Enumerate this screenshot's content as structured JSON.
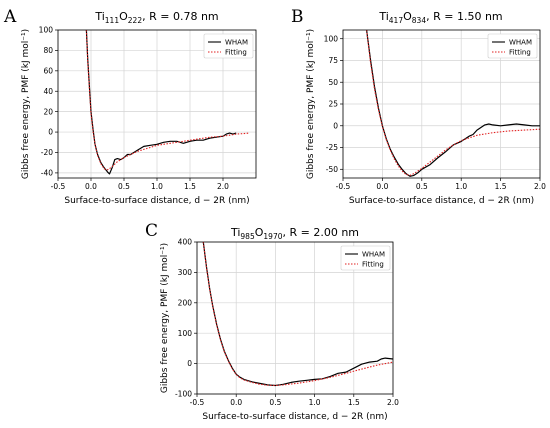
{
  "chart_data": [
    {
      "panel": "A",
      "type": "line",
      "title_main": "Ti",
      "title_sub1": "111",
      "title_mid": "O",
      "title_sub2": "222",
      "title_rest": ", R = 0.78 nm",
      "xlabel": "Surface-to-surface distance, d − 2R (nm)",
      "ylabel": "Gibbs free energy, PMF (kJ mol⁻¹)",
      "xlim": [
        -0.5,
        2.5
      ],
      "ylim": [
        -45,
        100
      ],
      "xticks": [
        -0.5,
        0.0,
        0.5,
        1.0,
        1.5,
        2.0
      ],
      "yticks": [
        -40,
        -20,
        0,
        20,
        40,
        60,
        80,
        100
      ],
      "grid": true,
      "legend": "top-right",
      "series": [
        {
          "name": "WHAM",
          "color": "#000000",
          "style": "solid",
          "x": [
            -0.07,
            -0.05,
            -0.02,
            0.0,
            0.03,
            0.06,
            0.1,
            0.15,
            0.2,
            0.25,
            0.28,
            0.32,
            0.36,
            0.4,
            0.45,
            0.5,
            0.55,
            0.6,
            0.7,
            0.8,
            0.9,
            1.0,
            1.1,
            1.2,
            1.3,
            1.4,
            1.5,
            1.6,
            1.7,
            1.8,
            1.9,
            2.0,
            2.05,
            2.1,
            2.15,
            2.2
          ],
          "y": [
            100,
            72,
            40,
            20,
            3,
            -12,
            -22,
            -30,
            -35,
            -39,
            -41,
            -35,
            -27,
            -26,
            -27,
            -25,
            -22,
            -22,
            -18,
            -14,
            -13,
            -12,
            -10,
            -9,
            -9,
            -11,
            -9,
            -8,
            -8,
            -6,
            -5,
            -4,
            -2,
            -1,
            -2,
            -1
          ]
        },
        {
          "name": "Fitting",
          "color": "#e02020",
          "style": "dotted",
          "x": [
            -0.07,
            -0.05,
            -0.02,
            0.0,
            0.03,
            0.06,
            0.1,
            0.15,
            0.2,
            0.25,
            0.3,
            0.35,
            0.4,
            0.5,
            0.6,
            0.7,
            0.8,
            0.9,
            1.0,
            1.2,
            1.4,
            1.6,
            1.8,
            2.0,
            2.2,
            2.4
          ],
          "y": [
            100,
            70,
            38,
            18,
            1,
            -12,
            -23,
            -31,
            -36,
            -37,
            -35,
            -32,
            -29,
            -25,
            -22,
            -19,
            -17,
            -15,
            -13,
            -11,
            -9,
            -7,
            -5,
            -4,
            -2,
            -1
          ]
        }
      ]
    },
    {
      "panel": "B",
      "type": "line",
      "title_main": "Ti",
      "title_sub1": "417",
      "title_mid": "O",
      "title_sub2": "834",
      "title_rest": ", R = 1.50 nm",
      "xlabel": "Surface-to-surface distance, d − 2R (nm)",
      "ylabel": "Gibbs free energy, PMF (kJ mol⁻¹)",
      "xlim": [
        -0.5,
        2.0
      ],
      "ylim": [
        -60,
        110
      ],
      "xticks": [
        -0.5,
        0.0,
        0.5,
        1.0,
        1.5,
        2.0
      ],
      "yticks": [
        -50,
        -25,
        0,
        25,
        50,
        75,
        100
      ],
      "grid": true,
      "legend": "top-right",
      "series": [
        {
          "name": "WHAM",
          "color": "#000000",
          "style": "solid",
          "x": [
            -0.2,
            -0.15,
            -0.1,
            -0.05,
            0.0,
            0.05,
            0.1,
            0.15,
            0.2,
            0.25,
            0.3,
            0.35,
            0.4,
            0.45,
            0.5,
            0.6,
            0.7,
            0.8,
            0.9,
            1.0,
            1.1,
            1.15,
            1.2,
            1.25,
            1.3,
            1.35,
            1.4,
            1.5,
            1.6,
            1.7,
            1.8,
            1.9,
            2.0
          ],
          "y": [
            110,
            75,
            45,
            20,
            0,
            -15,
            -27,
            -36,
            -44,
            -50,
            -55,
            -58,
            -57,
            -54,
            -50,
            -45,
            -37,
            -30,
            -22,
            -18,
            -12,
            -10,
            -5,
            -2,
            1,
            2,
            1,
            0,
            1,
            2,
            1,
            0,
            0
          ]
        },
        {
          "name": "Fitting",
          "color": "#e02020",
          "style": "dotted",
          "x": [
            -0.2,
            -0.15,
            -0.1,
            -0.05,
            0.0,
            0.05,
            0.1,
            0.15,
            0.2,
            0.25,
            0.3,
            0.35,
            0.4,
            0.5,
            0.6,
            0.7,
            0.8,
            0.9,
            1.0,
            1.2,
            1.4,
            1.6,
            1.8,
            2.0
          ],
          "y": [
            110,
            72,
            42,
            18,
            -1,
            -16,
            -28,
            -38,
            -46,
            -52,
            -56,
            -57,
            -55,
            -49,
            -42,
            -35,
            -28,
            -22,
            -17,
            -11,
            -8,
            -6,
            -5,
            -4
          ]
        }
      ]
    },
    {
      "panel": "C",
      "type": "line",
      "title_main": "Ti",
      "title_sub1": "985",
      "title_mid": "O",
      "title_sub2": "1970",
      "title_rest": ", R = 2.00 nm",
      "xlabel": "Surface-to-surface distance, d − 2R (nm)",
      "ylabel": "Gibbs free energy, PMF (kJ mol⁻¹)",
      "xlim": [
        -0.5,
        2.0
      ],
      "ylim": [
        -100,
        400
      ],
      "xticks": [
        -0.5,
        0.0,
        0.5,
        1.0,
        1.5,
        2.0
      ],
      "yticks": [
        -100,
        0,
        100,
        200,
        300,
        400
      ],
      "grid": true,
      "legend": "top-right",
      "series": [
        {
          "name": "WHAM",
          "color": "#000000",
          "style": "solid",
          "x": [
            -0.42,
            -0.38,
            -0.34,
            -0.3,
            -0.25,
            -0.2,
            -0.15,
            -0.1,
            -0.05,
            0.0,
            0.05,
            0.1,
            0.2,
            0.3,
            0.4,
            0.5,
            0.6,
            0.7,
            0.8,
            0.9,
            1.0,
            1.1,
            1.2,
            1.3,
            1.4,
            1.5,
            1.6,
            1.7,
            1.8,
            1.85,
            1.9,
            2.0
          ],
          "y": [
            400,
            320,
            250,
            190,
            130,
            80,
            40,
            10,
            -15,
            -35,
            -45,
            -52,
            -60,
            -65,
            -70,
            -72,
            -68,
            -62,
            -58,
            -55,
            -52,
            -50,
            -42,
            -32,
            -28,
            -15,
            -2,
            5,
            8,
            15,
            18,
            15
          ]
        },
        {
          "name": "Fitting",
          "color": "#e02020",
          "style": "dotted",
          "x": [
            -0.42,
            -0.38,
            -0.34,
            -0.3,
            -0.25,
            -0.2,
            -0.15,
            -0.1,
            -0.05,
            0.0,
            0.05,
            0.1,
            0.2,
            0.3,
            0.4,
            0.5,
            0.6,
            0.8,
            1.0,
            1.2,
            1.4,
            1.6,
            1.8,
            2.0
          ],
          "y": [
            400,
            318,
            248,
            188,
            128,
            78,
            38,
            8,
            -17,
            -36,
            -47,
            -54,
            -62,
            -68,
            -71,
            -72,
            -70,
            -64,
            -56,
            -45,
            -32,
            -18,
            -5,
            5
          ]
        }
      ]
    }
  ]
}
